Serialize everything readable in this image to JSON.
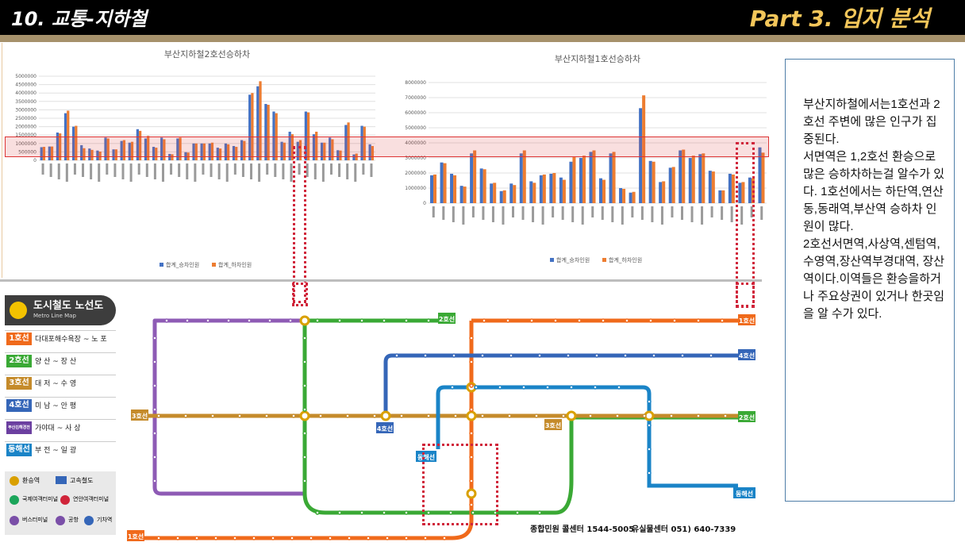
{
  "header": {
    "slide_title": "10. 교통-지하철",
    "part_title": "Part 3. 입지 분석"
  },
  "colors": {
    "board": "#4472c4",
    "alight": "#ed7d31",
    "line1": "#f06a1b",
    "line2": "#3aa935",
    "line3": "#c58b2b",
    "line4": "#2f6db5",
    "bgl": "#6b3fa0",
    "donghae": "#1a84c7"
  },
  "chart_data": [
    {
      "type": "bar",
      "title": "부산지하철2호선승하차",
      "ylim": [
        0,
        5000000
      ],
      "yticks": [
        "0",
        "500000",
        "1000000",
        "1500000",
        "2000000",
        "2500000",
        "3000000",
        "3500000",
        "4000000",
        "4500000",
        "5000000"
      ],
      "legend": "bottom",
      "series": [
        {
          "name": "합계_승차인원",
          "values": [
            780000,
            820000,
            1650000,
            2800000,
            2000000,
            900000,
            700000,
            580000,
            1350000,
            650000,
            1150000,
            1050000,
            1850000,
            1300000,
            800000,
            1350000,
            380000,
            1300000,
            480000,
            1000000,
            1000000,
            1000000,
            750000,
            1000000,
            850000,
            1200000,
            3900000,
            4400000,
            3350000,
            2900000,
            1100000,
            1700000,
            1100000,
            2900000,
            1550000,
            1050000,
            1350000,
            600000,
            2100000,
            350000,
            2050000,
            950000
          ]
        },
        {
          "name": "합계_하차인원",
          "values": [
            800000,
            820000,
            1600000,
            2950000,
            2050000,
            720000,
            620000,
            520000,
            1300000,
            650000,
            1200000,
            1100000,
            1750000,
            1450000,
            750000,
            1250000,
            360000,
            1350000,
            460000,
            1000000,
            1000000,
            1050000,
            700000,
            950000,
            800000,
            1150000,
            4000000,
            4700000,
            3300000,
            2800000,
            1050000,
            1550000,
            1200000,
            2850000,
            1700000,
            1050000,
            1250000,
            580000,
            2250000,
            400000,
            2000000,
            850000
          ]
        }
      ]
    },
    {
      "type": "bar",
      "title": "부산지하철1호선승하차",
      "ylim": [
        0,
        8000000
      ],
      "yticks": [
        "0",
        "1000000",
        "2000000",
        "3000000",
        "4000000",
        "5000000",
        "6000000",
        "7000000",
        "8000000"
      ],
      "legend": "bottom",
      "series": [
        {
          "name": "합계_승차인원",
          "values": [
            1850000,
            2700000,
            1950000,
            1150000,
            3300000,
            2300000,
            1300000,
            800000,
            1300000,
            3300000,
            1450000,
            1850000,
            1950000,
            1700000,
            2750000,
            3000000,
            3400000,
            1650000,
            3300000,
            1000000,
            700000,
            6300000,
            2800000,
            1400000,
            2350000,
            3500000,
            3000000,
            3250000,
            2150000,
            850000,
            1950000,
            1350000,
            1700000,
            3700000
          ]
        },
        {
          "name": "합계_하차인원",
          "values": [
            1900000,
            2650000,
            1850000,
            1100000,
            3500000,
            2250000,
            1350000,
            850000,
            1200000,
            3500000,
            1350000,
            1900000,
            2000000,
            1550000,
            3050000,
            3150000,
            3500000,
            1550000,
            3400000,
            950000,
            750000,
            7150000,
            2750000,
            1450000,
            2400000,
            3550000,
            3150000,
            3300000,
            2100000,
            850000,
            1900000,
            1400000,
            1650000,
            3350000
          ]
        }
      ]
    }
  ],
  "textbox": {
    "body": "부산지하철에서는1호선과 2호선 주변에 많은 인구가 집중된다.\n서면역은 1,2호선 환승으로 많은 승하차하는걸 알수가 있다. 1호선에서는 하단역,연산동,동래역,부산역 승하차 인원이 많다.\n2호선서면역,사상역,센텀역,수영역,장산역부경대역, 장산역이다.이역들은 환승을하거나 주요상권이 있거나 한곳임을 알 수가 있다."
  },
  "map": {
    "legend_title": "도시철도 노선도",
    "legend_subtitle": "Metro Line Map",
    "lines": [
      {
        "badge": "1호선",
        "stations": "다대포해수욕장 ~ 노 포"
      },
      {
        "badge": "2호선",
        "stations": "양 산 ~ 장 산"
      },
      {
        "badge": "3호선",
        "stations": "대 저 ~ 수 영"
      },
      {
        "badge": "4호선",
        "stations": "미 남 ~ 안 평"
      },
      {
        "badge": "부산김해경전철",
        "stations": "가야대 ~ 사 상"
      },
      {
        "badge": "동해선",
        "stations": "부 전 ~ 일 광"
      }
    ],
    "facilities": [
      "환승역",
      "고속철도",
      "국제여객터미널",
      "연안여객터미널",
      "버스터미널",
      "공항",
      "기차역"
    ],
    "terminal_labels": {
      "line3_west": "3호선",
      "line2_east": "2호선",
      "line1_ne": "1호선",
      "line4_e": "4호선",
      "line3_mid": "3호선",
      "line4_mid": "4호선",
      "donghae_e": "동해선",
      "line1_sw": "1호선",
      "line2_top": "2호선",
      "donghae_mid": "동해선"
    },
    "phone1": "종합민원 콜센터 1544-5005",
    "phone2": "유실물센터 051) 640-7339"
  }
}
